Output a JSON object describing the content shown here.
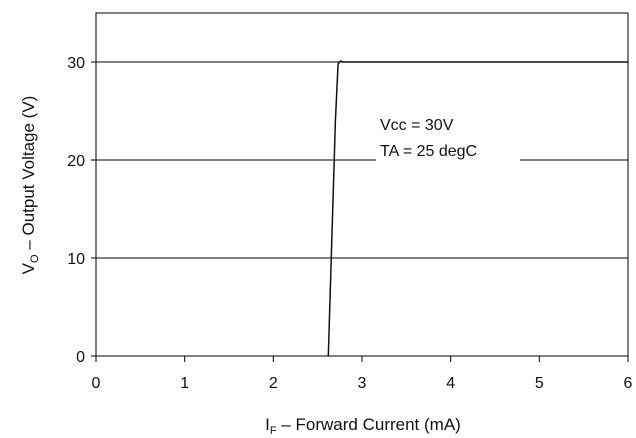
{
  "chart_data": {
    "type": "line",
    "title": "",
    "xlabel": {
      "main": "I",
      "sub": "F",
      "rest": " – Forward Current (mA)"
    },
    "ylabel": {
      "main": "V",
      "sub": "O",
      "rest": " – Output Voltage (V)"
    },
    "xlim": [
      0,
      6
    ],
    "ylim": [
      0,
      35
    ],
    "x_ticks": [
      0,
      1,
      2,
      3,
      4,
      5,
      6
    ],
    "y_ticks": [
      0,
      10,
      20,
      30
    ],
    "x_tick_labels": [
      "0",
      "1",
      "2",
      "3",
      "4",
      "5",
      "6"
    ],
    "y_tick_labels": [
      "0",
      "10",
      "20",
      "30"
    ],
    "grid": "horizontal",
    "annotations": [
      "Vcc = 30V",
      "TA = 25 degC"
    ],
    "series": [
      {
        "color": "#111111",
        "points": [
          [
            2.62,
            0
          ],
          [
            2.64,
            6
          ],
          [
            2.67,
            15
          ],
          [
            2.7,
            24
          ],
          [
            2.73,
            29.8
          ],
          [
            2.76,
            30.1
          ],
          [
            2.79,
            30.0
          ],
          [
            6.0,
            30.0
          ]
        ]
      }
    ]
  }
}
